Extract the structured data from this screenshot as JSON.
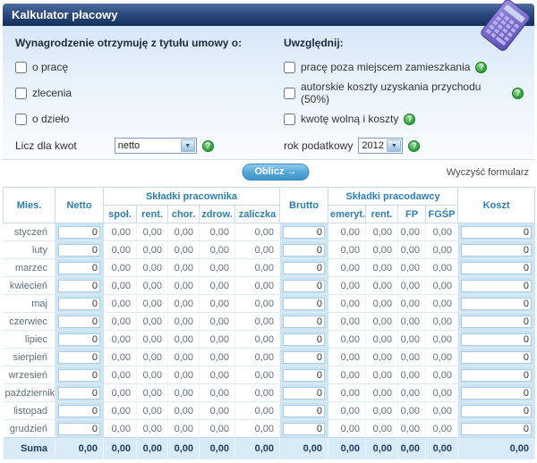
{
  "window": {
    "title": "Kalkulator płacowy"
  },
  "icons": {
    "help_glyph": "?"
  },
  "form": {
    "left": {
      "heading": "Wynagrodzenie otrzymuję z tytułu umowy o:",
      "options": [
        {
          "label": "o pracę",
          "checked": false
        },
        {
          "label": "zlecenia",
          "checked": false
        },
        {
          "label": "o dzieło",
          "checked": false
        }
      ],
      "amount_label": "Licz dla kwot",
      "amount_value": "netto"
    },
    "right": {
      "heading": "Uwzględnij:",
      "options": [
        {
          "label": "pracę poza miejscem zamieszkania",
          "checked": false
        },
        {
          "label": "autorskie koszty uzyskania przychodu (50%)",
          "checked": false
        },
        {
          "label": "kwotę wolną i koszty",
          "checked": false
        }
      ],
      "year_label": "rok podatkowy",
      "year_value": "2012"
    }
  },
  "actions": {
    "calculate_label": "Oblicz →",
    "clear_label": "Wyczyść formularz"
  },
  "table": {
    "headers": {
      "month": "Mies.",
      "netto": "Netto",
      "employee_group": "Składki pracownika",
      "employee_cols": [
        "społ.",
        "rent.",
        "chor.",
        "zdrow.",
        "zaliczka"
      ],
      "brutto": "Brutto",
      "employer_group": "Składki pracodawcy",
      "employer_cols": [
        "emeryt.",
        "rent.",
        "FP",
        "FGŚP"
      ],
      "koszt": "Koszt"
    },
    "months": [
      "styczeń",
      "luty",
      "marzec",
      "kwiecień",
      "maj",
      "czerwiec",
      "lipiec",
      "sierpień",
      "wrzesień",
      "październik",
      "listopad",
      "grudzień"
    ],
    "row_template": {
      "netto_input": "0",
      "employee_values": [
        "0,00",
        "0,00",
        "0,00",
        "0,00",
        "0,00"
      ],
      "brutto_input": "0",
      "employer_values": [
        "0,00",
        "0,00",
        "0,00",
        "0,00"
      ],
      "koszt_input": "0"
    },
    "summary": {
      "label": "Suma",
      "values": [
        "0,00",
        "0,00",
        "0,00",
        "0,00",
        "0,00",
        "0,00",
        "0,00",
        "0,00",
        "0,00",
        "0,00",
        "0,00",
        "0,00"
      ]
    }
  },
  "colors": {
    "titlebar_navy": "#14305c",
    "header_text_blue": "#2e7fae",
    "band_blue": "#cbe5f4",
    "summary_bg": "#d8ebf7",
    "button_blue": "#54a7d8",
    "help_green": "#2f9e38",
    "calculator_purple": "#6a5ec2"
  }
}
